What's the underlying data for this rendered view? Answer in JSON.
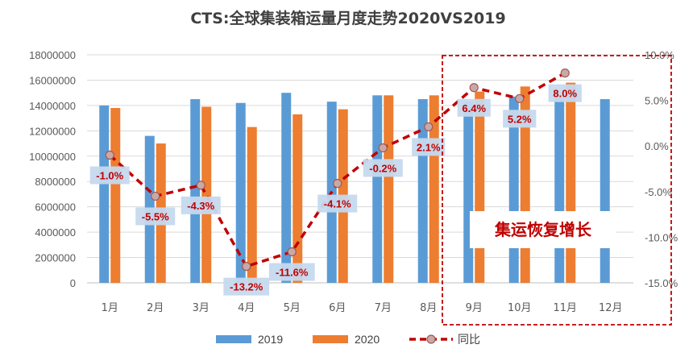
{
  "chart_data": {
    "type": "bar",
    "title": "CTS:全球集装箱运量月度走势2020VS2019",
    "categories": [
      "1月",
      "2月",
      "3月",
      "4月",
      "5月",
      "6月",
      "7月",
      "8月",
      "9月",
      "10月",
      "11月",
      "12月"
    ],
    "ylim": [
      0,
      18000000
    ],
    "yticks": [
      "18000000",
      "16000000",
      "14000000",
      "12000000",
      "10000000",
      "8000000",
      "6000000",
      "4000000",
      "2000000",
      "0"
    ],
    "y2lim": [
      -15.0,
      10.0
    ],
    "y2ticks": [
      "10.0%",
      "5.0%",
      "0.0%",
      "-5.0%",
      "-10.0%",
      "-15.0%"
    ],
    "series": [
      {
        "name": "2019",
        "kind": "bar",
        "color": "#5b9bd5",
        "values": [
          14000000,
          11600000,
          14500000,
          14200000,
          15000000,
          14300000,
          14800000,
          14500000,
          14300000,
          14700000,
          14600000,
          14500000
        ]
      },
      {
        "name": "2020",
        "kind": "bar",
        "color": "#ed7d31",
        "values": [
          13800000,
          11000000,
          13900000,
          12300000,
          13300000,
          13700000,
          14800000,
          14800000,
          15100000,
          15500000,
          15800000,
          null
        ]
      },
      {
        "name": "同比",
        "kind": "line",
        "axis": "right",
        "color": "#c00000",
        "values": [
          -1.0,
          -5.5,
          -4.3,
          -13.2,
          -11.6,
          -4.1,
          -0.2,
          2.1,
          6.4,
          5.2,
          8.0,
          null
        ],
        "labels": [
          "-1.0%",
          "-5.5%",
          "-4.3%",
          "-13.2%",
          "-11.6%",
          "-4.1%",
          "-0.2%",
          "2.1%",
          "6.4%",
          "5.2%",
          "8.0%",
          ""
        ]
      }
    ],
    "legend": "bottom",
    "grid": true,
    "annotation": {
      "text": "集运恢复增长",
      "box_color": "#c00000"
    }
  }
}
